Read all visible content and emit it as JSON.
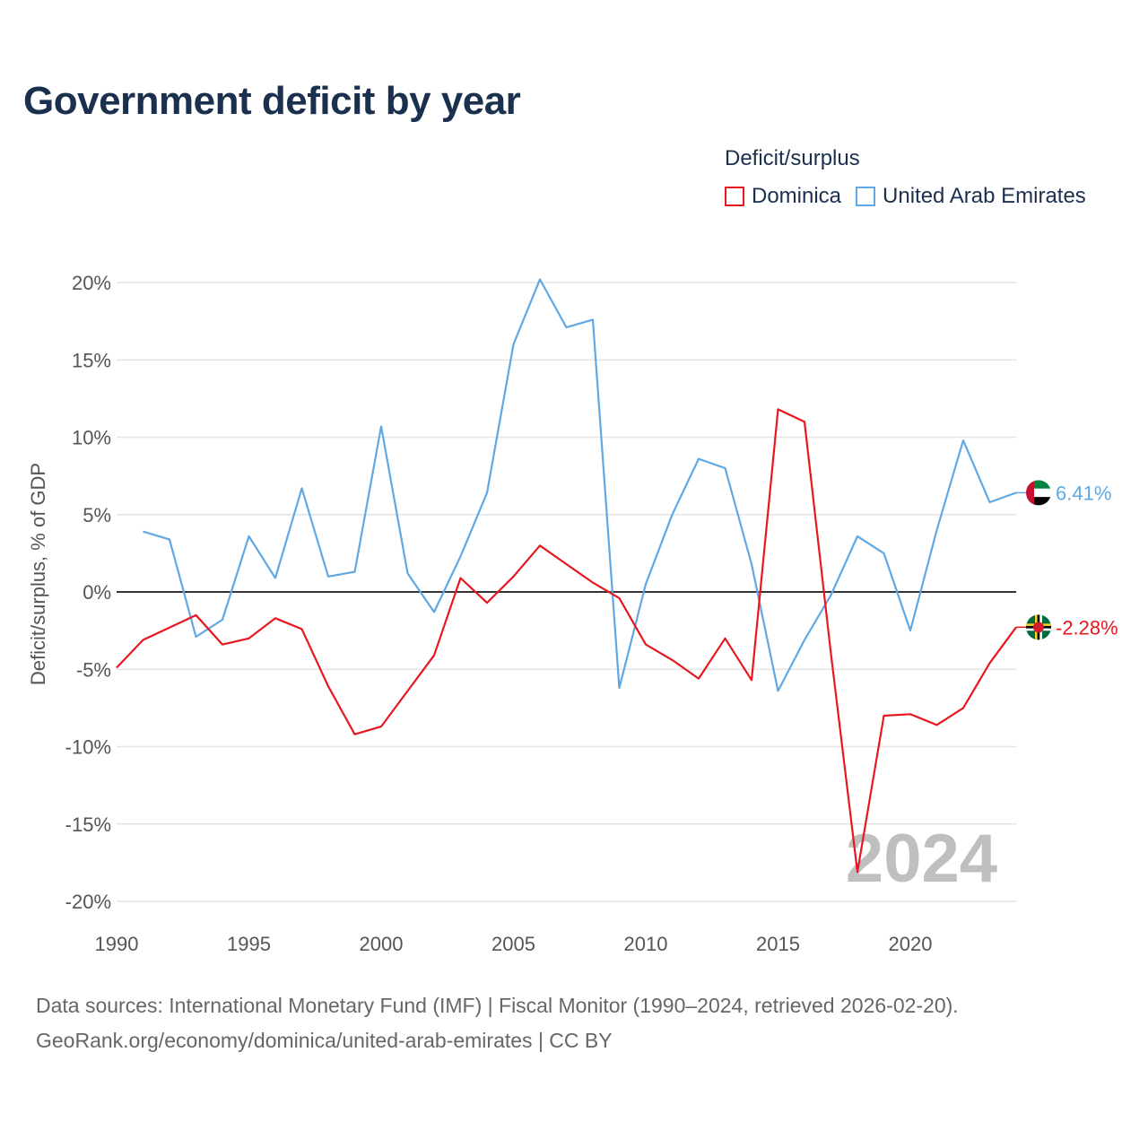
{
  "title": "Government deficit by year",
  "legend": {
    "title": "Deficit/surplus",
    "items": [
      {
        "label": "Dominica",
        "color": "#e8171f"
      },
      {
        "label": "United Arab Emirates",
        "color": "#5fa8e4"
      }
    ]
  },
  "footer": {
    "sources": "Data sources: International Monetary Fund (IMF) | Fiscal Monitor (1990–2024, retrieved 2026-02-20).",
    "link": "GeoRank.org/economy/dominica/united-arab-emirates | CC BY"
  },
  "chart_data": {
    "type": "line",
    "ylabel": "Deficit/surplus, % of GDP",
    "xlabel": "",
    "ylim": [
      -20,
      20
    ],
    "xlim": [
      1990,
      2024
    ],
    "yticks": [
      20,
      15,
      10,
      5,
      0,
      -5,
      -10,
      -15,
      -20
    ],
    "ytick_labels": [
      "20%",
      "15%",
      "10%",
      "5%",
      "0%",
      "-5%",
      "-10%",
      "-15%",
      "-20%"
    ],
    "xticks": [
      1990,
      1995,
      2000,
      2005,
      2010,
      2015,
      2020
    ],
    "xtick_labels": [
      "1990",
      "1995",
      "2000",
      "2005",
      "2010",
      "2015",
      "2020"
    ],
    "watermark": "2024",
    "series": [
      {
        "name": "Dominica",
        "color": "#e8171f",
        "end_label": "-2.28%",
        "flag_icon": "dominica-flag-icon",
        "x": [
          1990,
          1991,
          1992,
          1993,
          1994,
          1995,
          1996,
          1997,
          1998,
          1999,
          2000,
          2001,
          2002,
          2003,
          2004,
          2005,
          2006,
          2007,
          2008,
          2009,
          2010,
          2011,
          2012,
          2013,
          2014,
          2015,
          2016,
          2017,
          2018,
          2019,
          2020,
          2021,
          2022,
          2023,
          2024
        ],
        "values": [
          -4.9,
          -3.1,
          -2.3,
          -1.5,
          -3.4,
          -3.0,
          -1.7,
          -2.4,
          -6.1,
          -9.2,
          -8.7,
          -6.4,
          -4.1,
          0.9,
          -0.7,
          1.0,
          3.0,
          1.8,
          0.6,
          -0.4,
          -3.4,
          -4.4,
          -5.6,
          -3.0,
          -5.7,
          11.8,
          11.0,
          -4.0,
          -18.1,
          -8.0,
          -7.9,
          -8.6,
          -7.5,
          -4.6,
          -2.28
        ]
      },
      {
        "name": "United Arab Emirates",
        "color": "#5fa8e4",
        "end_label": "6.41%",
        "flag_icon": "uae-flag-icon",
        "x": [
          1991,
          1992,
          1993,
          1994,
          1995,
          1996,
          1997,
          1998,
          1999,
          2000,
          2001,
          2002,
          2003,
          2004,
          2005,
          2006,
          2007,
          2008,
          2009,
          2010,
          2011,
          2012,
          2013,
          2014,
          2015,
          2016,
          2017,
          2018,
          2019,
          2020,
          2021,
          2022,
          2023,
          2024
        ],
        "values": [
          3.9,
          3.4,
          -2.9,
          -1.8,
          3.6,
          0.9,
          6.7,
          1.0,
          1.3,
          10.7,
          1.2,
          -1.3,
          2.3,
          6.4,
          16.0,
          20.2,
          17.1,
          17.6,
          -6.2,
          0.5,
          5.0,
          8.6,
          8.0,
          1.8,
          -6.4,
          -3.1,
          -0.2,
          3.6,
          2.5,
          -2.5,
          4.0,
          9.8,
          5.8,
          6.41
        ]
      }
    ]
  }
}
